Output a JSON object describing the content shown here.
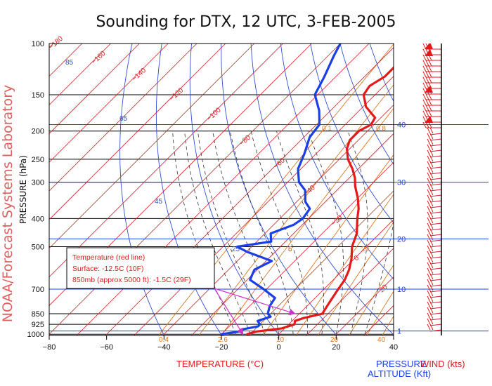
{
  "chart_data": {
    "type": "line",
    "title": "Sounding for DTX, 12 UTC,  3-FEB-2005",
    "side_label": "NOAA/Forecast Systems Laboratory",
    "xlabel": "TEMPERATURE (°C)",
    "ylabel": "PRESSURE (hPa)",
    "right_labels": {
      "pressure": "PRESSURE",
      "wind": "WIND (kts)",
      "altitude": "ALTITUDE (Kft)"
    },
    "x_ticks": [
      "−80",
      "−60",
      "−40",
      "−20",
      "0",
      "20",
      "40"
    ],
    "x_tick_values": [
      -80,
      -60,
      -40,
      -20,
      0,
      20,
      40
    ],
    "xlim": [
      -80,
      40
    ],
    "y_ticks": [
      "100",
      "150",
      "200",
      "250",
      "300",
      "400",
      "500",
      "700",
      "850",
      "925",
      "1000"
    ],
    "y_tick_values": [
      100,
      150,
      200,
      250,
      300,
      400,
      500,
      700,
      850,
      925,
      1000
    ],
    "ylim": [
      1010,
      100
    ],
    "altitude_ticks": [
      "1",
      "10",
      "20",
      "30",
      "40"
    ],
    "altitude_tick_pressures": [
      975,
      700,
      470,
      300,
      190
    ],
    "isotherm_labels": [
      "−180",
      "−160",
      "−140",
      "−120",
      "−100",
      "−80",
      "−60",
      "−40",
      "−20",
      "0",
      "20"
    ],
    "isotherm_label_values": [
      -180,
      -160,
      -140,
      -120,
      -100,
      -80,
      -60,
      -40,
      -20,
      0,
      20
    ],
    "dry_adiabat_labels": [
      "85",
      "65",
      "45",
      "25",
      "5"
    ],
    "mixing_ratio_labels": [
      "0.1",
      "0.8",
      "6",
      "29",
      "0.4",
      "2.6",
      "10",
      "20",
      "40"
    ],
    "series": [
      {
        "name": "Temperature",
        "color": "#e41a1a",
        "points": [
          {
            "p": 1000,
            "t": -11
          },
          {
            "p": 980,
            "t": -9
          },
          {
            "p": 955,
            "t": -1
          },
          {
            "p": 925,
            "t": 2
          },
          {
            "p": 900,
            "t": 1
          },
          {
            "p": 880,
            "t": 3
          },
          {
            "p": 850,
            "t": 8
          },
          {
            "p": 800,
            "t": 7
          },
          {
            "p": 750,
            "t": 6
          },
          {
            "p": 700,
            "t": 5
          },
          {
            "p": 650,
            "t": 4
          },
          {
            "p": 600,
            "t": 2
          },
          {
            "p": 550,
            "t": -1
          },
          {
            "p": 500,
            "t": -5
          },
          {
            "p": 450,
            "t": -8
          },
          {
            "p": 400,
            "t": -13
          },
          {
            "p": 370,
            "t": -16
          },
          {
            "p": 340,
            "t": -20
          },
          {
            "p": 310,
            "t": -25
          },
          {
            "p": 290,
            "t": -28
          },
          {
            "p": 270,
            "t": -32
          },
          {
            "p": 250,
            "t": -37
          },
          {
            "p": 230,
            "t": -41
          },
          {
            "p": 215,
            "t": -43
          },
          {
            "p": 200,
            "t": -43
          },
          {
            "p": 190,
            "t": -41
          },
          {
            "p": 180,
            "t": -42
          },
          {
            "p": 165,
            "t": -49
          },
          {
            "p": 150,
            "t": -54
          },
          {
            "p": 140,
            "t": -55
          },
          {
            "p": 130,
            "t": -53
          },
          {
            "p": 120,
            "t": -53
          }
        ]
      },
      {
        "name": "Dewpoint",
        "color": "#1a3fe4",
        "points": [
          {
            "p": 1000,
            "t": -20
          },
          {
            "p": 980,
            "t": -15
          },
          {
            "p": 960,
            "t": -14
          },
          {
            "p": 940,
            "t": -10
          },
          {
            "p": 925,
            "t": -10
          },
          {
            "p": 900,
            "t": -12
          },
          {
            "p": 870,
            "t": -9
          },
          {
            "p": 850,
            "t": -11
          },
          {
            "p": 800,
            "t": -13
          },
          {
            "p": 750,
            "t": -14
          },
          {
            "p": 700,
            "t": -21
          },
          {
            "p": 650,
            "t": -29
          },
          {
            "p": 600,
            "t": -31
          },
          {
            "p": 560,
            "t": -28
          },
          {
            "p": 520,
            "t": -40
          },
          {
            "p": 500,
            "t": -45
          },
          {
            "p": 480,
            "t": -35
          },
          {
            "p": 450,
            "t": -38
          },
          {
            "p": 420,
            "t": -33
          },
          {
            "p": 400,
            "t": -32
          },
          {
            "p": 370,
            "t": -33
          },
          {
            "p": 350,
            "t": -37
          },
          {
            "p": 320,
            "t": -41
          },
          {
            "p": 300,
            "t": -46
          },
          {
            "p": 270,
            "t": -51
          },
          {
            "p": 240,
            "t": -54
          },
          {
            "p": 210,
            "t": -58
          },
          {
            "p": 190,
            "t": -59
          },
          {
            "p": 170,
            "t": -64
          },
          {
            "p": 150,
            "t": -71
          },
          {
            "p": 130,
            "t": -74
          },
          {
            "p": 110,
            "t": -78
          },
          {
            "p": 100,
            "t": -80
          }
        ]
      }
    ],
    "annotation": {
      "title": "Temperature (red line)",
      "line1": "Surface: -12.5C (10F)",
      "line2": "850mb (approx 5000 ft): -1.5C (29F)",
      "surface_value_c": -12.5,
      "level_850_value_c": -1.5
    },
    "grid": true
  }
}
